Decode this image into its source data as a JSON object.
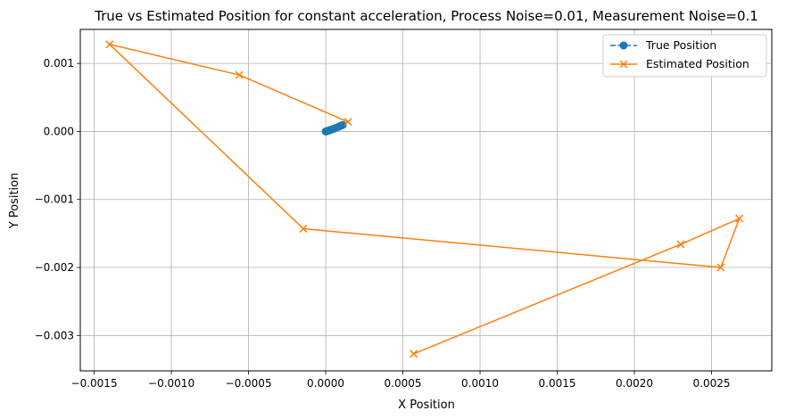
{
  "chart_data": {
    "type": "line",
    "title": "True vs Estimated Position for constant acceleration, Process Noise=0.01, Measurement Noise=0.1",
    "xlabel": "X Position",
    "ylabel": "Y Position",
    "xlim": [
      -0.00159,
      0.00289
    ],
    "ylim": [
      -0.00352,
      0.0015
    ],
    "xticks": [
      -0.0015,
      -0.001,
      -0.0005,
      0.0,
      0.0005,
      0.001,
      0.0015,
      0.002,
      0.0025
    ],
    "xtick_labels": [
      "−0.0015",
      "−0.0010",
      "−0.0005",
      "0.0000",
      "0.0005",
      "0.0010",
      "0.0015",
      "0.0020",
      "0.0025"
    ],
    "yticks": [
      0.001,
      0.0,
      -0.001,
      -0.002,
      -0.003
    ],
    "ytick_labels": [
      "0.001",
      "0.000",
      "−0.001",
      "−0.002",
      "−0.003"
    ],
    "grid": true,
    "legend_position": "top-right",
    "series": [
      {
        "name": "True Position",
        "color": "#1f77b4",
        "marker": "circle",
        "linestyle": "dashed",
        "x": [
          0.0,
          5e-06,
          1.2e-05,
          2e-05,
          3e-05,
          4e-05,
          5.2e-05,
          6.5e-05,
          8e-05,
          9.5e-05,
          0.00011
        ],
        "y": [
          0.0,
          3e-06,
          8e-06,
          1.4e-05,
          2.2e-05,
          3e-05,
          4e-05,
          5.2e-05,
          6.5e-05,
          8e-05,
          9.5e-05
        ]
      },
      {
        "name": "Estimated Position",
        "color": "#ff7f0e",
        "marker": "x",
        "linestyle": "solid",
        "x": [
          0.000145,
          -0.00056,
          -0.0014,
          -0.000145,
          0.00256,
          0.00268,
          0.0023,
          0.00057
        ],
        "y": [
          0.00014,
          0.00083,
          0.00128,
          -0.00143,
          -0.002,
          -0.00128,
          -0.00166,
          -0.00327
        ]
      }
    ]
  }
}
